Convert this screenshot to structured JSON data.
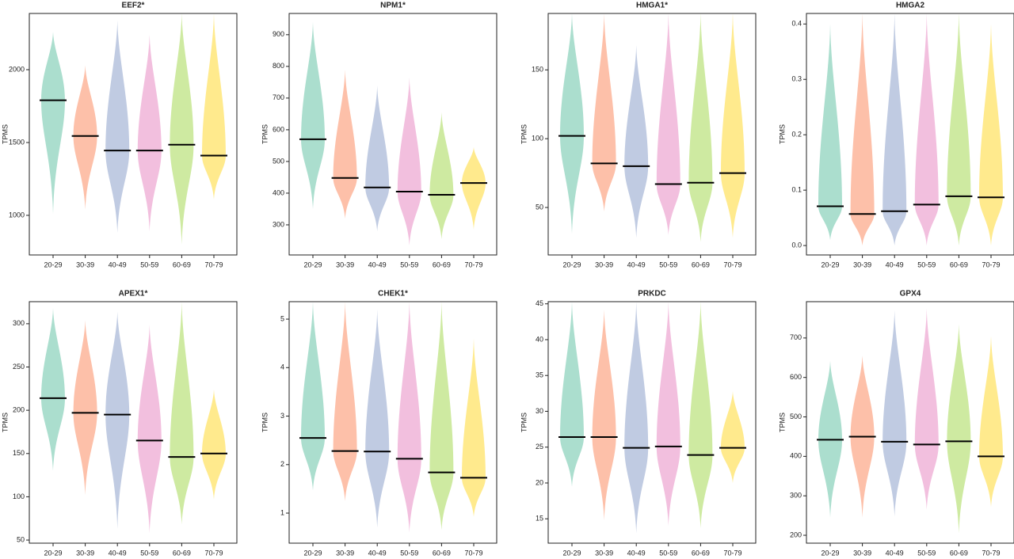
{
  "chart_data": [
    {
      "type": "violin",
      "title": "EEF2*",
      "ylabel": "TPMS",
      "categories": [
        "20-29",
        "30-39",
        "40-49",
        "50-59",
        "60-69",
        "70-79"
      ],
      "colors": [
        "#66c2a5",
        "#fc8d62",
        "#8da0cb",
        "#e78ac3",
        "#a6d854",
        "#ffd92f"
      ],
      "values": [
        1790,
        1545,
        1445,
        1445,
        1485,
        1410
      ],
      "min": [
        1010,
        1040,
        880,
        890,
        800,
        1110
      ],
      "max": [
        2260,
        2030,
        2340,
        2240,
        2386,
        2386
      ],
      "ylim": [
        728,
        2386
      ],
      "yticks": [
        1000,
        1500,
        2000
      ]
    },
    {
      "type": "violin",
      "title": "NPM1*",
      "ylabel": "TPMS",
      "categories": [
        "20-29",
        "30-39",
        "40-49",
        "50-59",
        "60-69",
        "70-79"
      ],
      "colors": [
        "#66c2a5",
        "#fc8d62",
        "#8da0cb",
        "#e78ac3",
        "#a6d854",
        "#ffd92f"
      ],
      "values": [
        570,
        448,
        418,
        405,
        395,
        432
      ],
      "min": [
        350,
        320,
        280,
        235,
        255,
        285
      ],
      "max": [
        940,
        790,
        740,
        765,
        655,
        545
      ],
      "ylim": [
        205,
        967
      ],
      "yticks": [
        300,
        400,
        500,
        600,
        700,
        800,
        900
      ]
    },
    {
      "type": "violin",
      "title": "HMGA1*",
      "ylabel": "TPMS",
      "categories": [
        "20-29",
        "30-39",
        "40-49",
        "50-59",
        "60-69",
        "70-79"
      ],
      "colors": [
        "#66c2a5",
        "#fc8d62",
        "#8da0cb",
        "#e78ac3",
        "#a6d854",
        "#ffd92f"
      ],
      "values": [
        102,
        82,
        80,
        67,
        68,
        75
      ],
      "min": [
        31,
        47,
        28,
        30,
        25,
        28
      ],
      "max": [
        191,
        191,
        168,
        191,
        191,
        191
      ],
      "ylim": [
        15.5,
        191
      ],
      "yticks": [
        50,
        100,
        150
      ]
    },
    {
      "type": "violin",
      "title": "HMGA2",
      "ylabel": "TPMS",
      "categories": [
        "20-29",
        "30-39",
        "40-49",
        "50-59",
        "60-69",
        "70-79"
      ],
      "colors": [
        "#66c2a5",
        "#fc8d62",
        "#8da0cb",
        "#e78ac3",
        "#a6d854",
        "#ffd92f"
      ],
      "values": [
        0.071,
        0.057,
        0.062,
        0.074,
        0.089,
        0.087
      ],
      "min": [
        0.01,
        0,
        0,
        0,
        0,
        0
      ],
      "max": [
        0.4,
        0.419,
        0.419,
        0.419,
        0.419,
        0.4
      ],
      "ylim": [
        -0.017,
        0.419
      ],
      "yticks": [
        {
          "value": 0,
          "label": "0.0"
        },
        {
          "value": 0.1,
          "label": "0.1"
        },
        {
          "value": 0.2,
          "label": "0.2"
        },
        {
          "value": 0.3,
          "label": "0.3"
        },
        {
          "value": 0.4,
          "label": "0.4"
        }
      ]
    },
    {
      "type": "violin",
      "title": "APEX1*",
      "ylabel": "TPMS",
      "categories": [
        "20-29",
        "30-39",
        "40-49",
        "50-59",
        "60-69",
        "70-79"
      ],
      "colors": [
        "#66c2a5",
        "#fc8d62",
        "#8da0cb",
        "#e78ac3",
        "#a6d854",
        "#ffd92f"
      ],
      "values": [
        214,
        197,
        195,
        165,
        146,
        150
      ],
      "min": [
        130,
        102,
        63,
        58,
        68,
        97
      ],
      "max": [
        318,
        304,
        314,
        299,
        325,
        224
      ],
      "ylim": [
        46.4,
        325.5
      ],
      "yticks": [
        50,
        100,
        150,
        200,
        250,
        300
      ]
    },
    {
      "type": "violin",
      "title": "CHEK1*",
      "ylabel": "TPMS",
      "categories": [
        "20-29",
        "30-39",
        "40-49",
        "50-59",
        "60-69",
        "70-79"
      ],
      "colors": [
        "#66c2a5",
        "#fc8d62",
        "#8da0cb",
        "#e78ac3",
        "#a6d854",
        "#ffd92f"
      ],
      "values": [
        2.55,
        2.28,
        2.27,
        2.12,
        1.84,
        1.73
      ],
      "min": [
        1.47,
        1.25,
        0.7,
        0.6,
        0.65,
        0.92
      ],
      "max": [
        5.36,
        5.36,
        5.2,
        5.36,
        5.36,
        4.6
      ],
      "ylim": [
        0.38,
        5.36
      ],
      "yticks": [
        1,
        2,
        3,
        4,
        5
      ]
    },
    {
      "type": "violin",
      "title": "PRKDC",
      "ylabel": "TPMS",
      "categories": [
        "20-29",
        "30-39",
        "40-49",
        "50-59",
        "60-69",
        "70-79"
      ],
      "colors": [
        "#66c2a5",
        "#fc8d62",
        "#8da0cb",
        "#e78ac3",
        "#a6d854",
        "#ffd92f"
      ],
      "values": [
        26.4,
        26.4,
        24.9,
        25.1,
        23.9,
        24.9
      ],
      "min": [
        19.5,
        14.8,
        13,
        14,
        13.7,
        20
      ],
      "max": [
        45.3,
        44.2,
        45.3,
        45.3,
        45.3,
        32.8
      ],
      "ylim": [
        11.6,
        45.3
      ],
      "yticks": [
        15,
        20,
        25,
        30,
        35,
        40,
        45
      ]
    },
    {
      "type": "violin",
      "title": "GPX4",
      "ylabel": "TPMS",
      "categories": [
        "20-29",
        "30-39",
        "40-49",
        "50-59",
        "60-69",
        "70-79"
      ],
      "colors": [
        "#66c2a5",
        "#fc8d62",
        "#8da0cb",
        "#e78ac3",
        "#a6d854",
        "#ffd92f"
      ],
      "values": [
        442,
        450,
        437,
        430,
        438,
        400
      ],
      "min": [
        245,
        245,
        248,
        265,
        205,
        272
      ],
      "max": [
        642,
        655,
        770,
        775,
        735,
        705
      ],
      "ylim": [
        180,
        792
      ],
      "yticks": [
        200,
        300,
        400,
        500,
        600,
        700
      ]
    }
  ]
}
